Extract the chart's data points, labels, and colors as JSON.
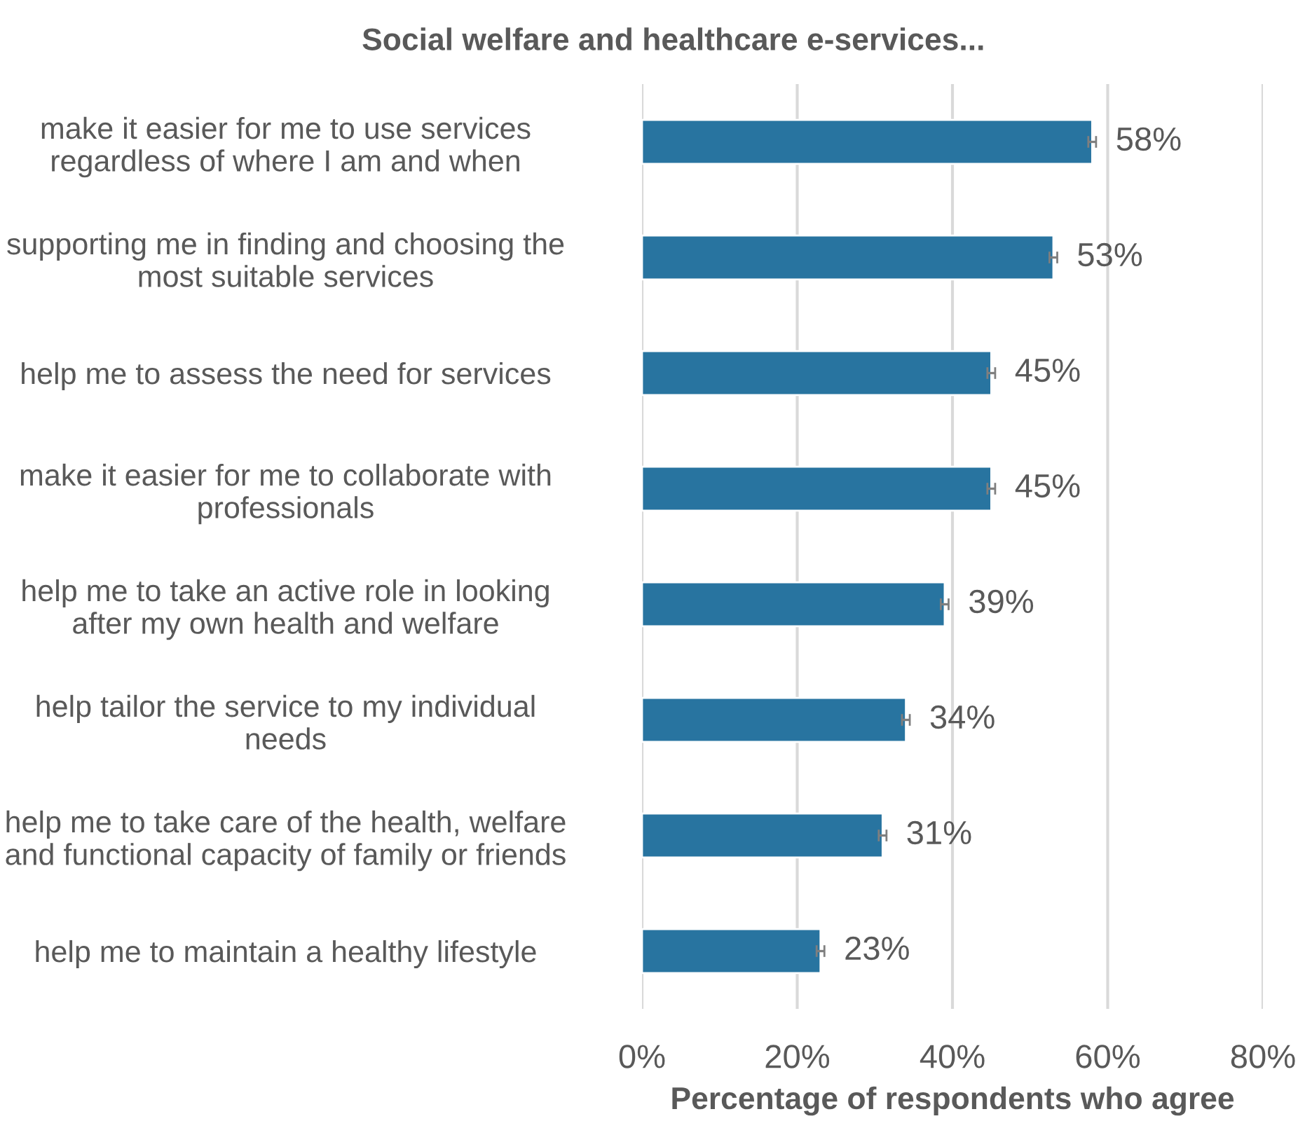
{
  "chart_data": {
    "type": "bar",
    "orientation": "horizontal",
    "title": "Social welfare and healthcare e-services...",
    "xlabel": "Percentage of respondents who agree",
    "categories": [
      "make it easier for me to use services\nregardless of where I am and when",
      "supporting me in finding and choosing the\nmost suitable services",
      "help me to assess the need for services",
      "make it easier for me to collaborate with\nprofessionals",
      "help me to take an active role in looking\nafter my own health and welfare",
      "help tailor the service to my individual\nneeds",
      "help me to take care of the health, welfare\nand functional capacity of family or friends",
      "help me to maintain a healthy lifestyle"
    ],
    "values": [
      58,
      53,
      45,
      45,
      39,
      34,
      31,
      23
    ],
    "errors": [
      0.5,
      0.5,
      0.5,
      0.5,
      0.5,
      0.5,
      0.5,
      0.5
    ],
    "value_labels": [
      "58%",
      "53%",
      "45%",
      "45%",
      "39%",
      "34%",
      "31%",
      "23%"
    ],
    "color": "#2874a0",
    "xlim": [
      0,
      80
    ],
    "xticks": [
      {
        "value": 0,
        "label": "0%"
      },
      {
        "value": 20,
        "label": "20%"
      },
      {
        "value": 40,
        "label": "40%"
      },
      {
        "value": 60,
        "label": "60%"
      },
      {
        "value": 80,
        "label": "80%"
      }
    ],
    "grid": "x",
    "legend": false
  }
}
